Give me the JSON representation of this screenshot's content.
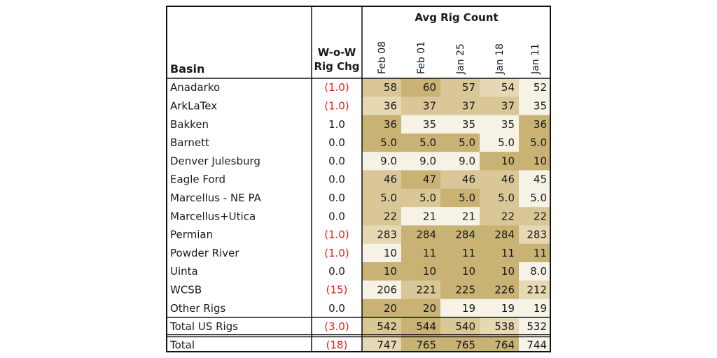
{
  "chart_data": {
    "type": "table",
    "row_header_label": "Basin",
    "change_header": [
      "W-o-W",
      "Rig Chg"
    ],
    "group_header": "Avg Rig Count",
    "columns": [
      "Feb 08",
      "Feb 01",
      "Jan 25",
      "Jan 18",
      "Jan 11"
    ],
    "rows": [
      {
        "basin": "Anadarko",
        "chg": "(1.0)",
        "neg": true,
        "values": [
          "58",
          "60",
          "57",
          "54",
          "52"
        ],
        "shade": [
          3,
          4,
          3,
          2,
          1
        ]
      },
      {
        "basin": "ArkLaTex",
        "chg": "(1.0)",
        "neg": true,
        "values": [
          "36",
          "37",
          "37",
          "37",
          "35"
        ],
        "shade": [
          2,
          3,
          3,
          3,
          1
        ]
      },
      {
        "basin": "Bakken",
        "chg": "1.0",
        "neg": false,
        "values": [
          "36",
          "35",
          "35",
          "35",
          "36"
        ],
        "shade": [
          4,
          1,
          1,
          1,
          4
        ]
      },
      {
        "basin": "Barnett",
        "chg": "0.0",
        "neg": false,
        "values": [
          "5.0",
          "5.0",
          "5.0",
          "5.0",
          "5.0"
        ],
        "shade": [
          4,
          4,
          4,
          1,
          4
        ]
      },
      {
        "basin": "Denver Julesburg",
        "chg": "0.0",
        "neg": false,
        "values": [
          "9.0",
          "9.0",
          "9.0",
          "10",
          "10"
        ],
        "shade": [
          1,
          1,
          1,
          4,
          4
        ]
      },
      {
        "basin": "Eagle Ford",
        "chg": "0.0",
        "neg": false,
        "values": [
          "46",
          "47",
          "46",
          "46",
          "45"
        ],
        "shade": [
          3,
          4,
          3,
          3,
          1
        ]
      },
      {
        "basin": "Marcellus - NE PA",
        "chg": "0.0",
        "neg": false,
        "values": [
          "5.0",
          "5.0",
          "5.0",
          "5.0",
          "5.0"
        ],
        "shade": [
          3,
          3,
          4,
          3,
          1
        ]
      },
      {
        "basin": "Marcellus+Utica",
        "chg": "0.0",
        "neg": false,
        "values": [
          "22",
          "21",
          "21",
          "22",
          "22"
        ],
        "shade": [
          3,
          1,
          1,
          3,
          3
        ]
      },
      {
        "basin": "Permian",
        "chg": "(1.0)",
        "neg": true,
        "values": [
          "283",
          "284",
          "284",
          "284",
          "283"
        ],
        "shade": [
          2,
          4,
          4,
          4,
          2
        ]
      },
      {
        "basin": "Powder River",
        "chg": "(1.0)",
        "neg": true,
        "values": [
          "10",
          "11",
          "11",
          "11",
          "11"
        ],
        "shade": [
          1,
          4,
          4,
          4,
          4
        ]
      },
      {
        "basin": "Uinta",
        "chg": "0.0",
        "neg": false,
        "values": [
          "10",
          "10",
          "10",
          "10",
          "8.0"
        ],
        "shade": [
          4,
          4,
          4,
          4,
          1
        ]
      },
      {
        "basin": "WCSB",
        "chg": "(15)",
        "neg": true,
        "values": [
          "206",
          "221",
          "225",
          "226",
          "212"
        ],
        "shade": [
          1,
          3,
          4,
          4,
          2
        ]
      },
      {
        "basin": "Other Rigs",
        "chg": "0.0",
        "neg": false,
        "values": [
          "20",
          "20",
          "19",
          "19",
          "19"
        ],
        "shade": [
          4,
          4,
          1,
          1,
          1
        ]
      },
      {
        "basin": "Total US Rigs",
        "chg": "(3.0)",
        "neg": true,
        "values": [
          "542",
          "544",
          "540",
          "538",
          "532"
        ],
        "shade": [
          3,
          4,
          3,
          2,
          1
        ]
      },
      {
        "basin": "Total",
        "chg": "(18)",
        "neg": true,
        "values": [
          "747",
          "765",
          "765",
          "764",
          "744"
        ],
        "shade": [
          2,
          4,
          4,
          4,
          1
        ]
      }
    ],
    "shade_colors": {
      "1": "#f7f2e6",
      "2": "#e7d8b4",
      "3": "#d9c798",
      "4": "#c8b274"
    },
    "negative_color": "#e8221a"
  }
}
